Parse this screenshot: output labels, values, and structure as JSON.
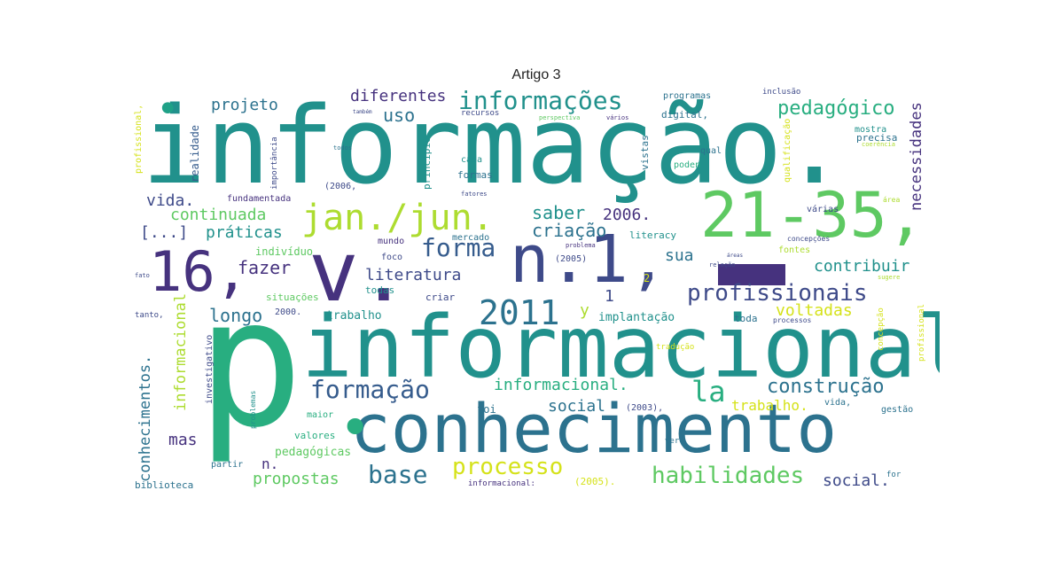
{
  "title": "Artigo 3",
  "colors": {
    "purple": "#46327e",
    "indigo": "#3e4a89",
    "blue": "#365c8d",
    "steel": "#2c728e",
    "teal": "#21918c",
    "green": "#1fa187",
    "emerald": "#28ae80",
    "lime": "#5ec962",
    "yellowgreen": "#addc30",
    "yellow": "#d5e21a"
  },
  "words": {
    "informacao": "informação.",
    "p": "p",
    "informacional": "informacional",
    "conhecimento": "conhecimento",
    "range": "21-35,",
    "n1": "n.1,",
    "v": "v.",
    "n16": "16,",
    "dash": "-",
    "dot1": "•",
    "dot2": "•",
    "jan": "jan./jun.",
    "ano2011": "2011",
    "informacoes": "informações",
    "profissionais": "profissionais",
    "formacao": "formação",
    "habilidades": "habilidades",
    "pedagogico": "pedagógico",
    "forma": "forma",
    "construcao": "construção",
    "base": "base",
    "processo": "processo",
    "diferentes": "diferentes",
    "projeto": "projeto",
    "uso": "uso",
    "continuada": "continuada",
    "praticas": "práticas",
    "saber": "saber",
    "criacao": "criação",
    "ano2006": "2006.",
    "literatura": "literatura",
    "fazer": "fazer",
    "longo": "longo",
    "informacional_dot": "informacional.",
    "la": "la",
    "social": "social",
    "social_dot": "social.",
    "mas": "mas",
    "propostas": "propostas",
    "contribuir": "contribuir",
    "voltadas": "voltadas",
    "sua": "sua",
    "vida_dot": "vida.",
    "colchetes": "[...]",
    "necessidades": "necessidades",
    "conhecimentos": "conhecimentos.",
    "informacional_v": "informacional",
    "realidade": "realidade",
    "n_dot": "n.",
    "pedagogicas": "pedagógicas",
    "trabalho_dot": "trabalho.",
    "foi": "foi",
    "valores": "valores",
    "maior": "maior",
    "partir": "partir",
    "biblioteca": "biblioteca",
    "informacional_colon": "informacional:",
    "ano2005_b": "(2005).",
    "for": "for",
    "gestao": "gestão",
    "vida_c": "vida,",
    "ano2003": "(2003),",
    "y": "y",
    "num1": "1",
    "implantacao": "implantação",
    "trabalho": "trabalho",
    "situacoes": "situações",
    "ano2000": "2000.",
    "todas": "todas",
    "criar": "criar",
    "toda": "toda",
    "individuo": "indivíduo",
    "mundo": "mundo",
    "foco": "foco",
    "mercado": "mercado",
    "literacy": "literacy",
    "ano2005_a": "(2005)",
    "fontes": "fontes",
    "num2": "2",
    "formas": "formas",
    "cada": "cada",
    "principio": "princípio",
    "vistas": "vistas",
    "programas": "programas",
    "digital": "digital,",
    "qual": "qual",
    "poden": "poden",
    "precisa": "precisa",
    "mostra": "mostra",
    "inclusao": "inclusão",
    "varias": "várias",
    "qualificacao": "qualificação",
    "area": "área",
    "concepcoes": "concepções",
    "processos": "processos",
    "profissional_v": "profissional,",
    "profissional_v2": "profissional",
    "importancia": "importância",
    "fundamentada": "fundamentada",
    "ano2006_p": "(2006,",
    "investigativo": "investigativo",
    "problemas": "problemas",
    "traducao": "tradução",
    "concepcao": "concepção",
    "ver": "ver",
    "tanto": "tanto,",
    "fato": "fato",
    "recursos": "recursos",
    "perspectiva": "perspectiva",
    "varios": "vários",
    "fatores": "fatores",
    "problema": "problema",
    "relacao": "relação",
    "sugere": "sugere",
    "coerencia": "coerência",
    "todos": "todos",
    "tambem": "também",
    "profissional_far": "profissional,",
    "areas": "áreas"
  }
}
